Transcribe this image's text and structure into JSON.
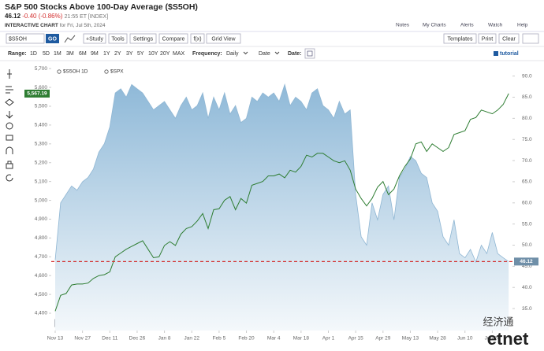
{
  "header": {
    "title": "S&P 500 Stocks Above 100-Day Average ($S5OH)",
    "last": "46.12",
    "change": "-0.40 (-0.86%)",
    "time": "21:55 ET [INDEX]",
    "interactive": "INTERACTIVE CHART",
    "date": "for Fri, Jul 5th, 2024"
  },
  "top_links": [
    "Notes",
    "My Charts",
    "Alerts",
    "Watch",
    "Help"
  ],
  "toolbar": {
    "symbol": "$S5OH",
    "go": "GO",
    "buttons": [
      "+Study",
      "Tools",
      "Settings",
      "Compare",
      "f(x)",
      "Grid View"
    ],
    "right_buttons": [
      "Templates",
      "Print",
      "Clear"
    ]
  },
  "range_bar": {
    "range_label": "Range:",
    "ranges": [
      "1D",
      "5D",
      "1M",
      "3M",
      "6M",
      "9M",
      "1Y",
      "2Y",
      "3Y",
      "5Y",
      "10Y",
      "20Y",
      "MAX"
    ],
    "frequency_label": "Frequency:",
    "frequency": "Daily",
    "date_mode": "Date",
    "date_label": "Date:",
    "tutorial": "tutorial"
  },
  "watermarks": {
    "barchart": "barchart",
    "etnet": "etnet",
    "chinese": "经济通"
  },
  "chart_data": {
    "type": "line",
    "categories": [
      "Nov 13",
      null,
      null,
      null,
      null,
      "Nov 27",
      null,
      null,
      null,
      null,
      "Dec 11",
      null,
      null,
      null,
      null,
      "Dec 26",
      null,
      null,
      null,
      null,
      "Jan 8",
      null,
      null,
      null,
      null,
      "Jan 22",
      null,
      null,
      null,
      null,
      "Feb 5",
      null,
      null,
      null,
      null,
      "Feb 20",
      null,
      null,
      null,
      null,
      "Mar 4",
      null,
      null,
      null,
      null,
      "Mar 18",
      null,
      null,
      null,
      null,
      "Apr 1",
      null,
      null,
      null,
      null,
      "Apr 15",
      null,
      null,
      null,
      null,
      "Apr 29",
      null,
      null,
      null,
      null,
      "May 13",
      null,
      null,
      null,
      null,
      "May 28",
      null,
      null,
      null,
      null,
      "Jun 10",
      null,
      null,
      null,
      null,
      "Jun 24",
      null,
      null,
      null
    ],
    "series": [
      {
        "name": "$S5OH 1D",
        "axis": "y2",
        "style": "area",
        "color": "#8fb6d3",
        "values": [
          46.5,
          60,
          62,
          64,
          63,
          65,
          66,
          68,
          72,
          74,
          78,
          86,
          87,
          85,
          88,
          87,
          86,
          84,
          82,
          83,
          84,
          82,
          80,
          83,
          85,
          82,
          83,
          86,
          80,
          85,
          82,
          86,
          81,
          83,
          79,
          80,
          85,
          84,
          86,
          85,
          86,
          84,
          88,
          83,
          85,
          84,
          82,
          86,
          87,
          83,
          82,
          80,
          84,
          81,
          82,
          62,
          52,
          50,
          60,
          56,
          62,
          64,
          56,
          66,
          68,
          71,
          70,
          67,
          66,
          60,
          58,
          52,
          50,
          56,
          48,
          47,
          49,
          46,
          50,
          48,
          53,
          48,
          47,
          46.12
        ]
      },
      {
        "name": "$SPX",
        "axis": "y",
        "style": "line",
        "color": "#2e7d32",
        "last_label": "5,567.19",
        "values": [
          4411,
          4495,
          4505,
          4550,
          4555,
          4555,
          4560,
          4585,
          4600,
          4605,
          4620,
          4700,
          4720,
          4740,
          4755,
          4770,
          4785,
          4740,
          4695,
          4700,
          4760,
          4780,
          4760,
          4820,
          4850,
          4860,
          4890,
          4930,
          4850,
          4950,
          4955,
          5000,
          5020,
          4950,
          5010,
          4985,
          5080,
          5090,
          5100,
          5130,
          5130,
          5140,
          5120,
          5160,
          5150,
          5180,
          5240,
          5230,
          5250,
          5250,
          5230,
          5210,
          5200,
          5210,
          5160,
          5060,
          5010,
          4970,
          5010,
          5070,
          5100,
          5030,
          5060,
          5130,
          5180,
          5220,
          5300,
          5310,
          5260,
          5300,
          5280,
          5260,
          5280,
          5350,
          5360,
          5370,
          5430,
          5440,
          5480,
          5470,
          5460,
          5480,
          5510,
          5567.19
        ]
      }
    ],
    "ylim": [
      4308,
      5730
    ],
    "yticks": [
      {
        "value": 4400,
        "label": "4,400"
      },
      {
        "value": 4500,
        "label": "4,500"
      },
      {
        "value": 4600,
        "label": "4,600"
      },
      {
        "value": 4700,
        "label": "4,700"
      },
      {
        "value": 4800,
        "label": "4,800"
      },
      {
        "value": 4900,
        "label": "4,900"
      },
      {
        "value": 5000,
        "label": "5,000"
      },
      {
        "value": 5100,
        "label": "5,100"
      },
      {
        "value": 5200,
        "label": "5,200"
      },
      {
        "value": 5300,
        "label": "5,300"
      },
      {
        "value": 5400,
        "label": "5,400"
      },
      {
        "value": 5500,
        "label": "5,500"
      },
      {
        "value": 5600,
        "label": "5,600"
      },
      {
        "value": 5700,
        "label": "5,700"
      }
    ],
    "y2lim": [
      29.8,
      93.1
    ],
    "y2ticks": [
      {
        "value": 35,
        "label": "35.0"
      },
      {
        "value": 40,
        "label": "40.0"
      },
      {
        "value": 45,
        "label": "45.0"
      },
      {
        "value": 50,
        "label": "50.0"
      },
      {
        "value": 55,
        "label": "55.0"
      },
      {
        "value": 60,
        "label": "60.0"
      },
      {
        "value": 65,
        "label": "65.0"
      },
      {
        "value": 70,
        "label": "70.0"
      },
      {
        "value": 75,
        "label": "75.0"
      },
      {
        "value": 80,
        "label": "80.0"
      },
      {
        "value": 85,
        "label": "85.0"
      },
      {
        "value": 90,
        "label": "90.0"
      }
    ],
    "grid": false,
    "legend": "top-left"
  }
}
